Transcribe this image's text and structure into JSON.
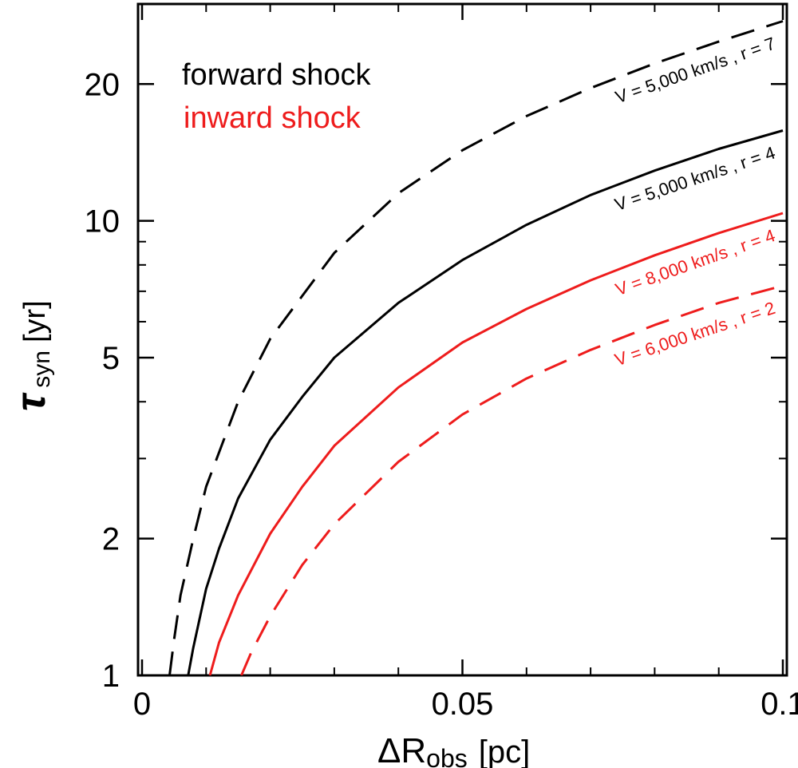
{
  "chart_data": {
    "type": "line",
    "x_scale": "linear",
    "y_scale": "log",
    "xlim": [
      0,
      0.1
    ],
    "ylim": [
      1,
      30
    ],
    "x_ticks": [
      {
        "value": 0,
        "label": "0"
      },
      {
        "value": 0.05,
        "label": "0.05"
      },
      {
        "value": 0.1,
        "label": "0.1"
      }
    ],
    "y_ticks": [
      {
        "value": 1,
        "label": "1"
      },
      {
        "value": 2,
        "label": "2"
      },
      {
        "value": 5,
        "label": "5"
      },
      {
        "value": 10,
        "label": "10"
      },
      {
        "value": 20,
        "label": "20"
      }
    ],
    "x_minor_step": 0.01,
    "y_minor": [
      3,
      4,
      6,
      7,
      8,
      9,
      30
    ],
    "xlabel": {
      "symbol": "ΔR",
      "sub": "obs",
      "unit": "[pc]"
    },
    "ylabel": {
      "symbol": "τ",
      "sub": "syn",
      "unit": "[yr]"
    },
    "legend": {
      "position": "top-left",
      "entries": [
        {
          "label": "forward shock",
          "color": "#000000"
        },
        {
          "label": "inward shock",
          "color": "#ee1c1c"
        }
      ]
    },
    "series": [
      {
        "name": "forward shock dashed",
        "label": "V = 5,000 km/s , r = 7",
        "color": "#000000",
        "dash": true,
        "points": [
          [
            0.0043,
            1
          ],
          [
            0.005,
            1.2
          ],
          [
            0.006,
            1.5
          ],
          [
            0.008,
            2.0
          ],
          [
            0.01,
            2.6
          ],
          [
            0.015,
            4.0
          ],
          [
            0.02,
            5.5
          ],
          [
            0.03,
            8.5
          ],
          [
            0.04,
            11.5
          ],
          [
            0.05,
            14.3
          ],
          [
            0.06,
            17.0
          ],
          [
            0.07,
            19.6
          ],
          [
            0.08,
            22.2
          ],
          [
            0.09,
            24.8
          ],
          [
            0.1,
            27.5
          ]
        ]
      },
      {
        "name": "forward shock solid",
        "label": "V = 5,000 km/s , r = 4",
        "color": "#000000",
        "dash": false,
        "points": [
          [
            0.0072,
            1
          ],
          [
            0.008,
            1.15
          ],
          [
            0.01,
            1.55
          ],
          [
            0.012,
            1.9
          ],
          [
            0.015,
            2.45
          ],
          [
            0.02,
            3.3
          ],
          [
            0.025,
            4.1
          ],
          [
            0.03,
            5.0
          ],
          [
            0.04,
            6.6
          ],
          [
            0.05,
            8.2
          ],
          [
            0.06,
            9.8
          ],
          [
            0.07,
            11.4
          ],
          [
            0.08,
            12.9
          ],
          [
            0.09,
            14.4
          ],
          [
            0.1,
            15.8
          ]
        ]
      },
      {
        "name": "inward shock solid",
        "label": "V = 8,000 km/s , r = 4",
        "color": "#ee1c1c",
        "dash": false,
        "points": [
          [
            0.0106,
            1
          ],
          [
            0.012,
            1.18
          ],
          [
            0.015,
            1.5
          ],
          [
            0.02,
            2.05
          ],
          [
            0.025,
            2.6
          ],
          [
            0.03,
            3.2
          ],
          [
            0.04,
            4.3
          ],
          [
            0.05,
            5.4
          ],
          [
            0.06,
            6.4
          ],
          [
            0.07,
            7.4
          ],
          [
            0.08,
            8.4
          ],
          [
            0.09,
            9.4
          ],
          [
            0.1,
            10.4
          ]
        ]
      },
      {
        "name": "inward shock dashed",
        "label": "V = 6,000 km/s , r = 2",
        "color": "#ee1c1c",
        "dash": true,
        "points": [
          [
            0.0155,
            1
          ],
          [
            0.017,
            1.12
          ],
          [
            0.02,
            1.35
          ],
          [
            0.025,
            1.75
          ],
          [
            0.03,
            2.15
          ],
          [
            0.04,
            2.95
          ],
          [
            0.05,
            3.75
          ],
          [
            0.06,
            4.5
          ],
          [
            0.07,
            5.2
          ],
          [
            0.08,
            5.9
          ],
          [
            0.09,
            6.6
          ],
          [
            0.1,
            7.2
          ]
        ]
      }
    ]
  }
}
